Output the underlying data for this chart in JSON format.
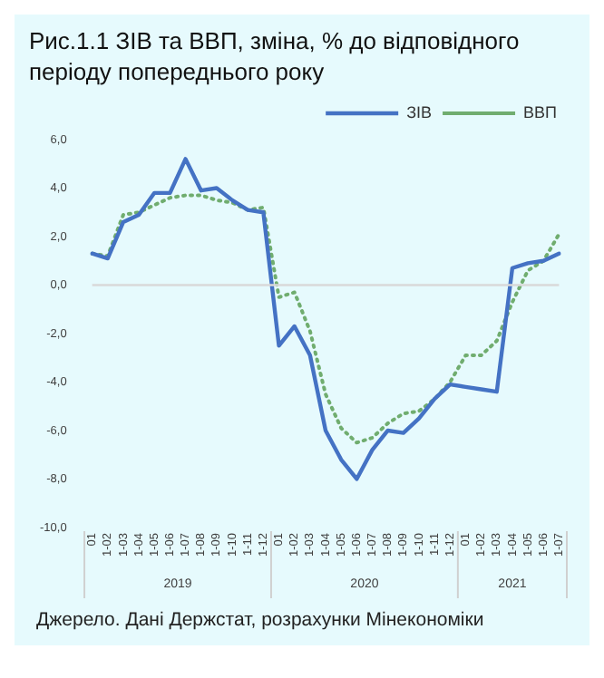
{
  "chart_data": {
    "type": "line",
    "title": "Рис.1.1 ЗІВ та ВВП, зміна, % до відповідного періоду попереднього року",
    "categories": [
      "01",
      "1-02",
      "1-03",
      "1-04",
      "1-05",
      "1-06",
      "1-07",
      "1-08",
      "1-09",
      "1-10",
      "1-11",
      "1-12",
      "01",
      "1-02",
      "1-03",
      "1-04",
      "1-05",
      "1-06",
      "1-07",
      "1-08",
      "1-09",
      "1-10",
      "1-11",
      "1-12",
      "01",
      "1-02",
      "1-03",
      "1-04",
      "1-05",
      "1-06",
      "1-07"
    ],
    "series": [
      {
        "name": "ЗІВ",
        "color": "#4472c4",
        "line_style": "solid",
        "values": [
          1.3,
          1.1,
          2.6,
          2.9,
          3.8,
          3.8,
          5.2,
          3.9,
          4.0,
          3.5,
          3.1,
          3.0,
          -2.5,
          -1.7,
          -2.9,
          -6.0,
          -7.2,
          -8.0,
          -6.8,
          -6.0,
          -6.1,
          -5.5,
          -4.7,
          -4.1,
          -4.2,
          -4.3,
          -4.4,
          0.7,
          0.9,
          1.0,
          1.3
        ]
      },
      {
        "name": "ВВП",
        "color": "#70ad6f",
        "line_style": "dotted",
        "values": [
          1.3,
          1.2,
          2.9,
          3.0,
          3.3,
          3.6,
          3.7,
          3.7,
          3.5,
          3.4,
          3.1,
          3.2,
          -0.5,
          -0.3,
          -1.9,
          -4.5,
          -5.9,
          -6.5,
          -6.3,
          -5.7,
          -5.3,
          -5.2,
          -4.7,
          -4.0,
          -2.9,
          -2.9,
          -2.3,
          -0.7,
          0.6,
          1.0,
          2.1
        ]
      }
    ],
    "ylim": [
      -10,
      6
    ],
    "yticks": [
      {
        "value": -10,
        "label": "-10,0"
      },
      {
        "value": -8,
        "label": "-8,0"
      },
      {
        "value": -6,
        "label": "-6,0"
      },
      {
        "value": -4,
        "label": "-4,0"
      },
      {
        "value": -2,
        "label": "-2,0"
      },
      {
        "value": 0,
        "label": "0,0"
      },
      {
        "value": 2,
        "label": "2,0"
      },
      {
        "value": 4,
        "label": "4,0"
      },
      {
        "value": 6,
        "label": "6,0"
      }
    ],
    "grid": false,
    "legend": "top right",
    "marker": "none",
    "ref_lines": [
      {
        "axis": "y",
        "value": 0,
        "color": "#d9d9d9"
      }
    ],
    "annotations": [
      "2019",
      "2020",
      "2021",
      "Джерело. Дані Держстат, розрахунки Мінекономіки"
    ]
  }
}
